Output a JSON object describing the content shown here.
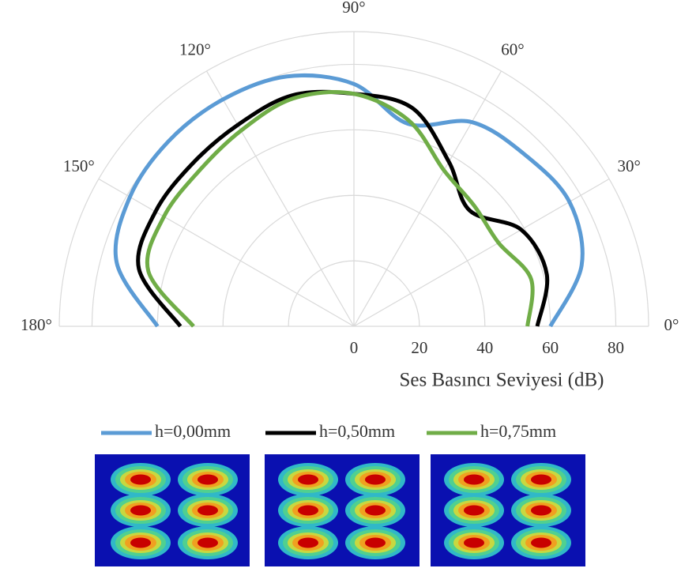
{
  "chart_data": {
    "type": "polar",
    "x_label": "Ses Basıncı Seviyesi (dB)",
    "theta": [
      0,
      15,
      30,
      45,
      60,
      75,
      90,
      105,
      120,
      135,
      150,
      165,
      180
    ],
    "rlim": [
      0,
      90
    ],
    "rticks": [
      0,
      20,
      40,
      60,
      80
    ],
    "thetaticks": [
      {
        "value": 0,
        "label": "0°"
      },
      {
        "value": 30,
        "label": "30°"
      },
      {
        "value": 60,
        "label": "60°"
      },
      {
        "value": 90,
        "label": "90°"
      },
      {
        "value": 120,
        "label": "120°"
      },
      {
        "value": 150,
        "label": "150°"
      },
      {
        "value": 180,
        "label": "180°"
      }
    ],
    "grid": true,
    "series": [
      {
        "name": "h=0,00mm",
        "color": "#5b9bd5",
        "values": [
          60,
          72,
          76,
          74,
          72,
          64,
          74,
          79,
          80,
          80,
          79,
          75,
          60
        ]
      },
      {
        "name": "h=0,50mm",
        "color": "#000000",
        "values": [
          56,
          61,
          59,
          50,
          58,
          69,
          71,
          73,
          71,
          70,
          70,
          68,
          53
        ]
      },
      {
        "name": "h=0,75mm",
        "color": "#70ad47",
        "values": [
          53,
          56,
          51,
          52,
          55,
          65,
          71,
          72,
          69,
          67,
          67,
          65,
          49
        ]
      }
    ]
  }
}
